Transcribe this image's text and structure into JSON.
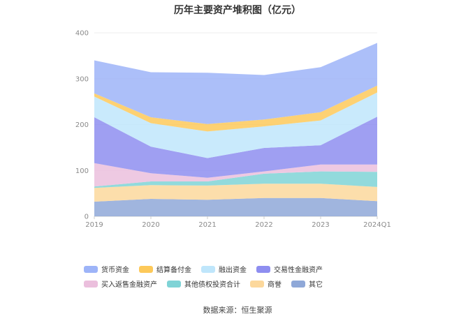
{
  "chart_data": {
    "type": "area",
    "title": "历年主要资产堆积图（亿元）",
    "categories": [
      "2019",
      "2020",
      "2021",
      "2022",
      "2023",
      "2024Q1"
    ],
    "ylim": [
      0,
      400
    ],
    "yticks": [
      0,
      100,
      200,
      300,
      400
    ],
    "grid": true,
    "legend_position": "bottom",
    "stacked": true,
    "series": [
      {
        "name": "其它",
        "color": "#8fa8d8",
        "values": [
          32,
          38,
          36,
          40,
          40,
          33
        ]
      },
      {
        "name": "商誉",
        "color": "#fcd89c",
        "values": [
          30,
          30,
          31,
          31,
          31,
          31
        ]
      },
      {
        "name": "其他债权投资合计",
        "color": "#7fd3d6",
        "values": [
          3,
          8,
          9,
          22,
          27,
          33
        ]
      },
      {
        "name": "买入返售金融资产",
        "color": "#ebbfdd",
        "values": [
          51,
          18,
          8,
          5,
          15,
          16
        ]
      },
      {
        "name": "交易性金融资产",
        "color": "#8e8ef0",
        "values": [
          100,
          58,
          43,
          51,
          42,
          104
        ]
      },
      {
        "name": "融出资金",
        "color": "#bfe6fb",
        "values": [
          45,
          51,
          58,
          47,
          54,
          53
        ]
      },
      {
        "name": "结算备付金",
        "color": "#fdc95a",
        "values": [
          7,
          13,
          16,
          15,
          18,
          15
        ]
      },
      {
        "name": "货币资金",
        "color": "#9db4f8",
        "values": [
          72,
          98,
          112,
          97,
          98,
          93
        ]
      }
    ],
    "legend_order": [
      "货币资金",
      "结算备付金",
      "融出资金",
      "交易性金融资产",
      "买入返售金融资产",
      "其他债权投资合计",
      "商誉",
      "其它"
    ]
  },
  "source_text": "数据来源：恒生聚源"
}
